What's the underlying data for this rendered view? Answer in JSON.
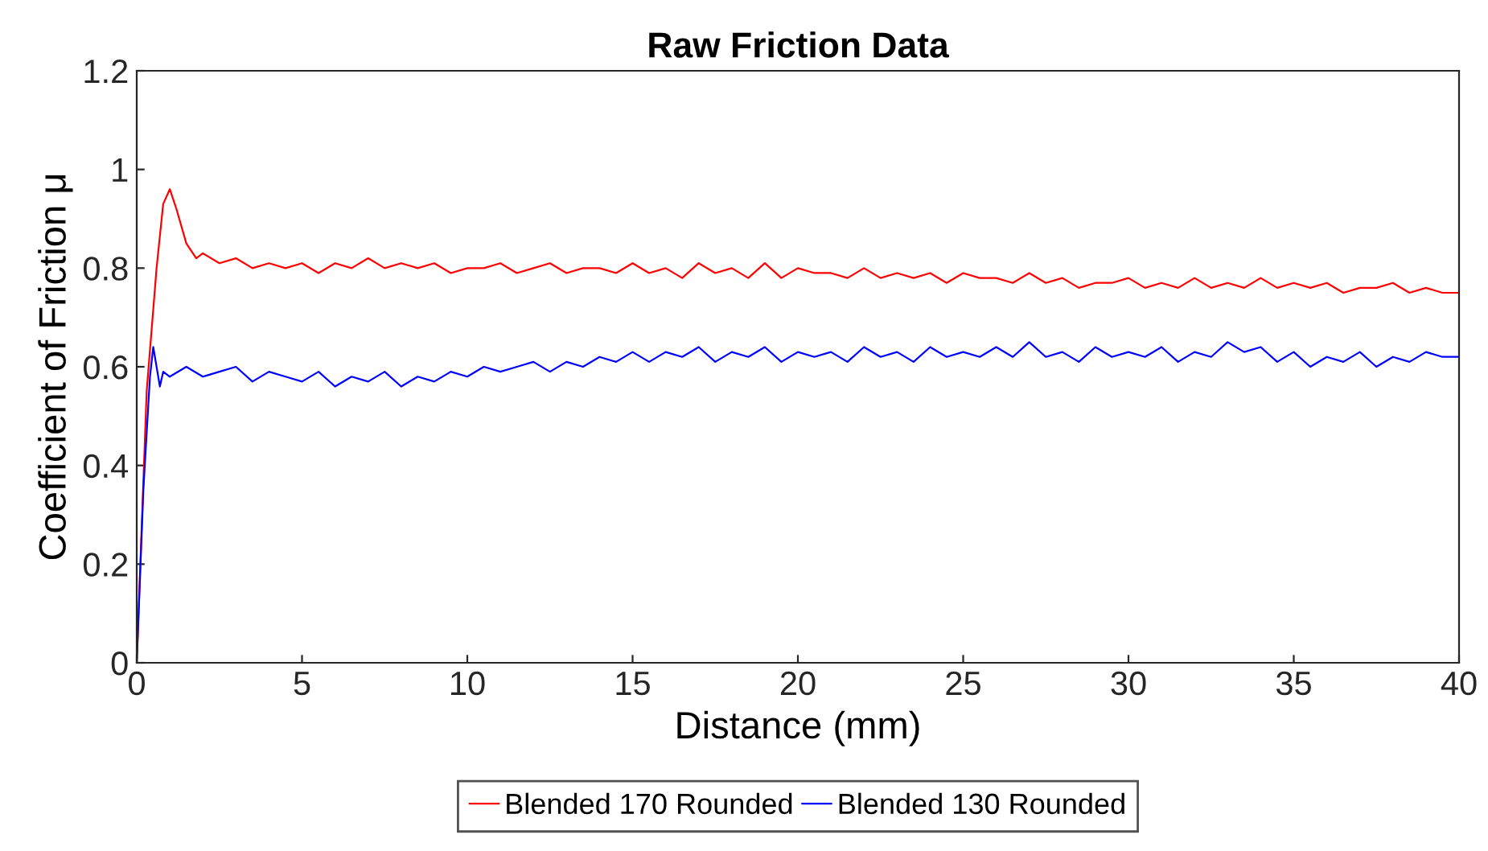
{
  "chart_data": {
    "type": "line",
    "title": "Raw Friction Data",
    "xlabel": "Distance (mm)",
    "ylabel": "Coefficient of Friction μ",
    "xlim": [
      0,
      40
    ],
    "ylim": [
      0,
      1.2
    ],
    "xticks": [
      0,
      5,
      10,
      15,
      20,
      25,
      30,
      35,
      40
    ],
    "yticks": [
      0,
      0.2,
      0.4,
      0.6,
      0.8,
      1,
      1.2
    ],
    "grid": false,
    "legend": "bottom",
    "line_style": "solid",
    "marker": "none",
    "series": [
      {
        "name": "Blended 170 Rounded",
        "color": "#ff0000",
        "x": [
          0,
          0.3,
          0.6,
          0.8,
          1.0,
          1.2,
          1.5,
          1.8,
          2.0,
          2.5,
          3,
          3.5,
          4,
          4.5,
          5,
          5.5,
          6,
          6.5,
          7,
          7.5,
          8,
          8.5,
          9,
          9.5,
          10,
          10.5,
          11,
          11.5,
          12,
          12.5,
          13,
          13.5,
          14,
          14.5,
          15,
          15.5,
          16,
          16.5,
          17,
          17.5,
          18,
          18.5,
          19,
          19.5,
          20,
          20.5,
          21,
          21.5,
          22,
          22.5,
          23,
          23.5,
          24,
          24.5,
          25,
          25.5,
          26,
          26.5,
          27,
          27.5,
          28,
          28.5,
          29,
          29.5,
          30,
          30.5,
          31,
          31.5,
          32,
          32.5,
          33,
          33.5,
          34,
          34.5,
          35,
          35.5,
          36,
          36.5,
          37,
          37.5,
          38,
          38.5,
          39,
          39.5,
          40
        ],
        "values": [
          0,
          0.55,
          0.8,
          0.93,
          0.96,
          0.92,
          0.85,
          0.82,
          0.83,
          0.81,
          0.82,
          0.8,
          0.81,
          0.8,
          0.81,
          0.79,
          0.81,
          0.8,
          0.82,
          0.8,
          0.81,
          0.8,
          0.81,
          0.79,
          0.8,
          0.8,
          0.81,
          0.79,
          0.8,
          0.81,
          0.79,
          0.8,
          0.8,
          0.79,
          0.81,
          0.79,
          0.8,
          0.78,
          0.81,
          0.79,
          0.8,
          0.78,
          0.81,
          0.78,
          0.8,
          0.79,
          0.79,
          0.78,
          0.8,
          0.78,
          0.79,
          0.78,
          0.79,
          0.77,
          0.79,
          0.78,
          0.78,
          0.77,
          0.79,
          0.77,
          0.78,
          0.76,
          0.77,
          0.77,
          0.78,
          0.76,
          0.77,
          0.76,
          0.78,
          0.76,
          0.77,
          0.76,
          0.78,
          0.76,
          0.77,
          0.76,
          0.77,
          0.75,
          0.76,
          0.76,
          0.77,
          0.75,
          0.76,
          0.75,
          0.75
        ]
      },
      {
        "name": "Blended 130 Rounded",
        "color": "#0000ff",
        "x": [
          0,
          0.2,
          0.4,
          0.5,
          0.6,
          0.7,
          0.8,
          1.0,
          1.5,
          2,
          2.5,
          3,
          3.5,
          4,
          4.5,
          5,
          5.5,
          6,
          6.5,
          7,
          7.5,
          8,
          8.5,
          9,
          9.5,
          10,
          10.5,
          11,
          11.5,
          12,
          12.5,
          13,
          13.5,
          14,
          14.5,
          15,
          15.5,
          16,
          16.5,
          17,
          17.5,
          18,
          18.5,
          19,
          19.5,
          20,
          20.5,
          21,
          21.5,
          22,
          22.5,
          23,
          23.5,
          24,
          24.5,
          25,
          25.5,
          26,
          26.5,
          27,
          27.5,
          28,
          28.5,
          29,
          29.5,
          30,
          30.5,
          31,
          31.5,
          32,
          32.5,
          33,
          33.5,
          34,
          34.5,
          35,
          35.5,
          36,
          36.5,
          37,
          37.5,
          38,
          38.5,
          39,
          39.5,
          40
        ],
        "values": [
          0,
          0.35,
          0.58,
          0.64,
          0.6,
          0.56,
          0.59,
          0.58,
          0.6,
          0.58,
          0.59,
          0.6,
          0.57,
          0.59,
          0.58,
          0.57,
          0.59,
          0.56,
          0.58,
          0.57,
          0.59,
          0.56,
          0.58,
          0.57,
          0.59,
          0.58,
          0.6,
          0.59,
          0.6,
          0.61,
          0.59,
          0.61,
          0.6,
          0.62,
          0.61,
          0.63,
          0.61,
          0.63,
          0.62,
          0.64,
          0.61,
          0.63,
          0.62,
          0.64,
          0.61,
          0.63,
          0.62,
          0.63,
          0.61,
          0.64,
          0.62,
          0.63,
          0.61,
          0.64,
          0.62,
          0.63,
          0.62,
          0.64,
          0.62,
          0.65,
          0.62,
          0.63,
          0.61,
          0.64,
          0.62,
          0.63,
          0.62,
          0.64,
          0.61,
          0.63,
          0.62,
          0.65,
          0.63,
          0.64,
          0.61,
          0.63,
          0.6,
          0.62,
          0.61,
          0.63,
          0.6,
          0.62,
          0.61,
          0.63,
          0.62,
          0.62
        ]
      }
    ]
  }
}
